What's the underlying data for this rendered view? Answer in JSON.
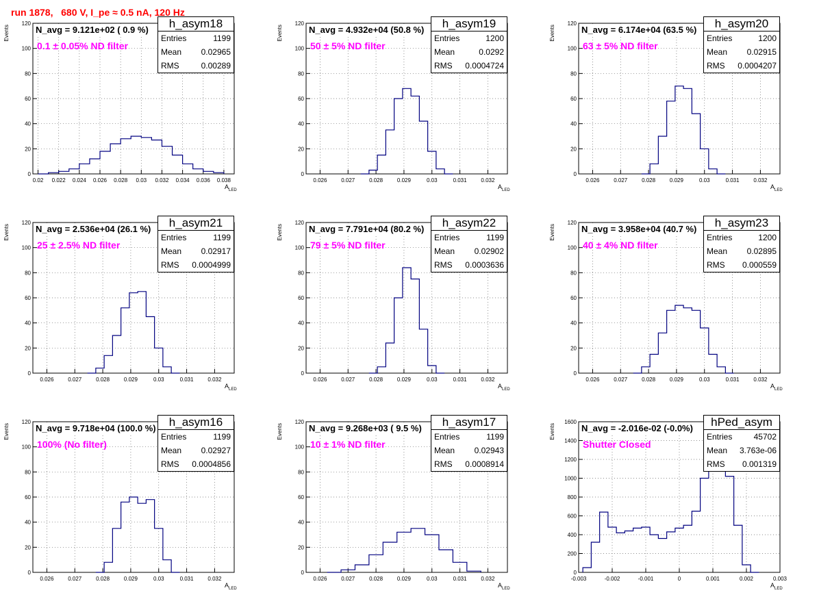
{
  "title": "run 1878,   680 V, I_pe ≈ 0.5 nA, 120 Hz",
  "colors": {
    "line": "#000080",
    "title": "#ff0000",
    "note": "#ff00ff",
    "grid": "#666666"
  },
  "common": {
    "ylabel": "Events",
    "xlabel": "A",
    "xlabel_sub": "LED"
  },
  "panels": [
    {
      "name": "h_asym18",
      "navg": "N_avg = 9.121e+02 ( 0.9 %)",
      "note": "0.1 ± 0.05% ND filter",
      "stats": [
        [
          "Entries",
          "1199"
        ],
        [
          "Mean",
          "0.02965"
        ],
        [
          "RMS",
          "0.00289"
        ]
      ]
    },
    {
      "name": "h_asym19",
      "navg": "N_avg = 4.932e+04 (50.8 %)",
      "note": "50 ± 5% ND filter",
      "stats": [
        [
          "Entries",
          "1200"
        ],
        [
          "Mean",
          "0.0292"
        ],
        [
          "RMS",
          "0.0004724"
        ]
      ]
    },
    {
      "name": "h_asym20",
      "navg": "N_avg = 6.174e+04 (63.5 %)",
      "note": "63 ± 5% ND filter",
      "stats": [
        [
          "Entries",
          "1200"
        ],
        [
          "Mean",
          "0.02915"
        ],
        [
          "RMS",
          "0.0004207"
        ]
      ]
    },
    {
      "name": "h_asym21",
      "navg": "N_avg = 2.536e+04 (26.1 %)",
      "note": "25 ± 2.5% ND filter",
      "stats": [
        [
          "Entries",
          "1199"
        ],
        [
          "Mean",
          "0.02917"
        ],
        [
          "RMS",
          "0.0004999"
        ]
      ]
    },
    {
      "name": "h_asym22",
      "navg": "N_avg = 7.791e+04 (80.2 %)",
      "note": "79 ± 5% ND filter",
      "stats": [
        [
          "Entries",
          "1199"
        ],
        [
          "Mean",
          "0.02902"
        ],
        [
          "RMS",
          "0.0003636"
        ]
      ]
    },
    {
      "name": "h_asym23",
      "navg": "N_avg = 3.958e+04 (40.7 %)",
      "note": "40 ± 4% ND filter",
      "stats": [
        [
          "Entries",
          "1200"
        ],
        [
          "Mean",
          "0.02895"
        ],
        [
          "RMS",
          "0.000559"
        ]
      ]
    },
    {
      "name": "h_asym16",
      "navg": "N_avg = 9.718e+04 (100.0 %)",
      "note": "100% (No filter)",
      "stats": [
        [
          "Entries",
          "1199"
        ],
        [
          "Mean",
          "0.02927"
        ],
        [
          "RMS",
          "0.0004856"
        ]
      ]
    },
    {
      "name": "h_asym17",
      "navg": "N_avg = 9.268e+03 ( 9.5 %)",
      "note": "10 ± 1% ND filter",
      "stats": [
        [
          "Entries",
          "1199"
        ],
        [
          "Mean",
          "0.02943"
        ],
        [
          "RMS",
          "0.0008914"
        ]
      ]
    },
    {
      "name": "hPed_asym",
      "navg": "N_avg = -2.016e-02 (-0.0%)",
      "note": "Shutter Closed",
      "stats": [
        [
          "Entries",
          "45702"
        ],
        [
          "Mean",
          "3.763e-06"
        ],
        [
          "RMS",
          "0.001319"
        ]
      ]
    }
  ],
  "chart_data": [
    {
      "type": "histogram",
      "title": "h_asym18",
      "xlabel": "A LED",
      "ylabel": "Events",
      "xlim": [
        0.0195,
        0.039
      ],
      "ylim": [
        0,
        120
      ],
      "xticks": [
        "0.02",
        "0.022",
        "0.024",
        "0.026",
        "0.028",
        "0.03",
        "0.032",
        "0.034",
        "0.036",
        "0.038"
      ],
      "yticks": [
        "0",
        "20",
        "40",
        "60",
        "80",
        "100",
        "120"
      ],
      "x": [
        0.0205,
        0.0215,
        0.0225,
        0.0235,
        0.0245,
        0.0255,
        0.0265,
        0.0275,
        0.0285,
        0.0295,
        0.0305,
        0.0315,
        0.0325,
        0.0335,
        0.0345,
        0.0355,
        0.0365,
        0.0375
      ],
      "values": [
        0,
        1,
        2,
        4,
        8,
        12,
        18,
        24,
        28,
        30,
        29,
        27,
        22,
        15,
        8,
        4,
        2,
        1
      ]
    },
    {
      "type": "histogram",
      "title": "h_asym19",
      "xlabel": "A LED",
      "ylabel": "Events",
      "xlim": [
        0.0255,
        0.0327
      ],
      "ylim": [
        0,
        120
      ],
      "xticks": [
        "0.026",
        "0.027",
        "0.028",
        "0.029",
        "0.03",
        "0.031",
        "0.032"
      ],
      "yticks": [
        "0",
        "20",
        "40",
        "60",
        "80",
        "100",
        "120"
      ],
      "x": [
        0.0276,
        0.0279,
        0.0282,
        0.0285,
        0.0288,
        0.0291,
        0.0294,
        0.0297,
        0.03,
        0.0303,
        0.0306
      ],
      "values": [
        0,
        3,
        15,
        35,
        60,
        68,
        62,
        42,
        18,
        4,
        0
      ]
    },
    {
      "type": "histogram",
      "title": "h_asym20",
      "xlabel": "A LED",
      "ylabel": "Events",
      "xlim": [
        0.0255,
        0.0327
      ],
      "ylim": [
        0,
        120
      ],
      "xticks": [
        "0.026",
        "0.027",
        "0.028",
        "0.029",
        "0.03",
        "0.031",
        "0.032"
      ],
      "yticks": [
        "0",
        "20",
        "40",
        "60",
        "80",
        "100",
        "120"
      ],
      "x": [
        0.0279,
        0.0282,
        0.0285,
        0.0288,
        0.0291,
        0.0294,
        0.0297,
        0.03,
        0.0303,
        0.0306
      ],
      "values": [
        0,
        8,
        30,
        58,
        70,
        68,
        48,
        20,
        4,
        0
      ]
    },
    {
      "type": "histogram",
      "title": "h_asym21",
      "xlabel": "A LED",
      "ylabel": "Events",
      "xlim": [
        0.0255,
        0.0327
      ],
      "ylim": [
        0,
        120
      ],
      "xticks": [
        "0.026",
        "0.027",
        "0.028",
        "0.029",
        "0.03",
        "0.031",
        "0.032"
      ],
      "yticks": [
        "0",
        "20",
        "40",
        "60",
        "80",
        "100",
        "120"
      ],
      "x": [
        0.0276,
        0.0279,
        0.0282,
        0.0285,
        0.0288,
        0.0291,
        0.0294,
        0.0297,
        0.03,
        0.0303,
        0.0306
      ],
      "values": [
        0,
        4,
        14,
        30,
        52,
        64,
        65,
        45,
        20,
        5,
        0
      ]
    },
    {
      "type": "histogram",
      "title": "h_asym22",
      "xlabel": "A LED",
      "ylabel": "Events",
      "xlim": [
        0.0255,
        0.0327
      ],
      "ylim": [
        0,
        120
      ],
      "xticks": [
        "0.026",
        "0.027",
        "0.028",
        "0.029",
        "0.03",
        "0.031",
        "0.032"
      ],
      "yticks": [
        "0",
        "20",
        "40",
        "60",
        "80",
        "100",
        "120"
      ],
      "x": [
        0.0279,
        0.0282,
        0.0285,
        0.0288,
        0.0291,
        0.0294,
        0.0297,
        0.03,
        0.0303
      ],
      "values": [
        0,
        5,
        24,
        60,
        84,
        75,
        35,
        6,
        0
      ]
    },
    {
      "type": "histogram",
      "title": "h_asym23",
      "xlabel": "A LED",
      "ylabel": "Events",
      "xlim": [
        0.0255,
        0.0327
      ],
      "ylim": [
        0,
        120
      ],
      "xticks": [
        "0.026",
        "0.027",
        "0.028",
        "0.029",
        "0.03",
        "0.031",
        "0.032"
      ],
      "yticks": [
        "0",
        "20",
        "40",
        "60",
        "80",
        "100",
        "120"
      ],
      "x": [
        0.0276,
        0.0279,
        0.0282,
        0.0285,
        0.0288,
        0.0291,
        0.0294,
        0.0297,
        0.03,
        0.0303,
        0.0306,
        0.0309
      ],
      "values": [
        0,
        5,
        15,
        32,
        50,
        54,
        52,
        50,
        36,
        15,
        5,
        0
      ]
    },
    {
      "type": "histogram",
      "title": "h_asym16",
      "xlabel": "A LED",
      "ylabel": "Events",
      "xlim": [
        0.0255,
        0.0327
      ],
      "ylim": [
        0,
        120
      ],
      "xticks": [
        "0.026",
        "0.027",
        "0.028",
        "0.029",
        "0.03",
        "0.031",
        "0.032"
      ],
      "yticks": [
        "0",
        "20",
        "40",
        "60",
        "80",
        "100",
        "120"
      ],
      "x": [
        0.0279,
        0.0282,
        0.0285,
        0.0288,
        0.0291,
        0.0294,
        0.0297,
        0.03,
        0.0303,
        0.0306
      ],
      "values": [
        0,
        8,
        35,
        56,
        60,
        55,
        58,
        35,
        10,
        0
      ]
    },
    {
      "type": "histogram",
      "title": "h_asym17",
      "xlabel": "A LED",
      "ylabel": "Events",
      "xlim": [
        0.0255,
        0.0327
      ],
      "ylim": [
        0,
        120
      ],
      "xticks": [
        "0.026",
        "0.027",
        "0.028",
        "0.029",
        "0.03",
        "0.031",
        "0.032"
      ],
      "yticks": [
        "0",
        "20",
        "40",
        "60",
        "80",
        "100",
        "120"
      ],
      "x": [
        0.0265,
        0.027,
        0.0275,
        0.028,
        0.0285,
        0.029,
        0.0295,
        0.03,
        0.0305,
        0.031,
        0.0315
      ],
      "values": [
        0,
        2,
        6,
        14,
        24,
        32,
        35,
        30,
        18,
        8,
        1
      ]
    },
    {
      "type": "histogram",
      "title": "hPed_asym",
      "xlabel": "A LED",
      "ylabel": "Events",
      "xlim": [
        -0.003,
        0.003
      ],
      "ylim": [
        0,
        1600
      ],
      "xticks": [
        "-0.003",
        "-0.002",
        "-0.001",
        "0",
        "0.001",
        "0.002",
        "0.003"
      ],
      "yticks": [
        "0",
        "200",
        "400",
        "600",
        "800",
        "1000",
        "1200",
        "1400",
        "1600"
      ],
      "x": [
        -0.00275,
        -0.0025,
        -0.00225,
        -0.002,
        -0.00175,
        -0.0015,
        -0.00125,
        -0.001,
        -0.00075,
        -0.0005,
        -0.00025,
        0.0,
        0.00025,
        0.0005,
        0.00075,
        0.001,
        0.00125,
        0.0015,
        0.00175,
        0.002,
        0.00225
      ],
      "values": [
        50,
        320,
        640,
        480,
        420,
        440,
        470,
        480,
        400,
        360,
        430,
        470,
        500,
        650,
        1000,
        1520,
        1150,
        1020,
        500,
        80,
        0
      ]
    }
  ]
}
